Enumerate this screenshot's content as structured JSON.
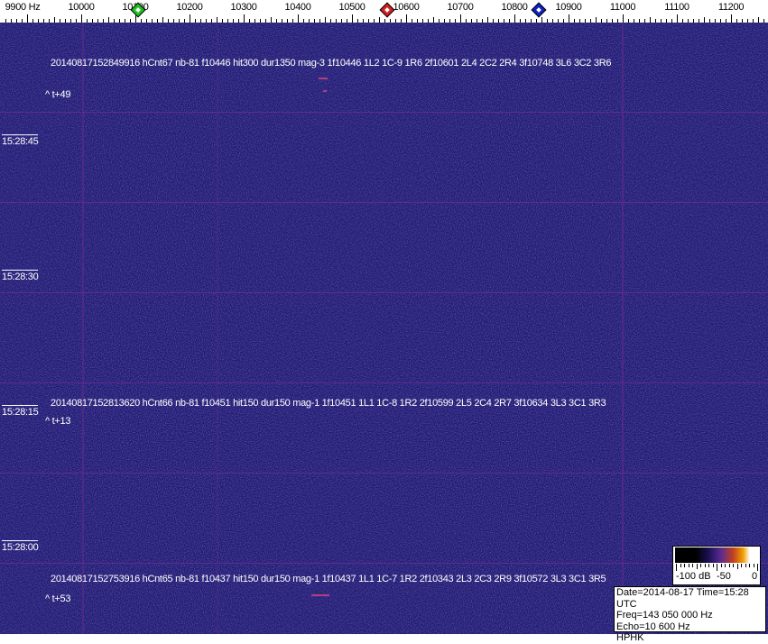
{
  "freq_axis": {
    "labels": [
      "9900 Hz",
      "10000",
      "10100",
      "10200",
      "10300",
      "10400",
      "10500",
      "10600",
      "10700",
      "10800",
      "10900",
      "11000",
      "11100",
      "11200"
    ],
    "label_values": [
      9900,
      10000,
      10100,
      10200,
      10300,
      10400,
      10500,
      10600,
      10700,
      10800,
      10900,
      11000,
      11100,
      11200
    ],
    "markers": [
      {
        "name": "green-marker",
        "freq": 10100,
        "color": "#20c020"
      },
      {
        "name": "red-marker",
        "freq": 10560,
        "color": "#d02020"
      },
      {
        "name": "blue-marker",
        "freq": 10840,
        "color": "#1020c0"
      }
    ]
  },
  "time_axis": [
    "15:28:45",
    "15:28:30",
    "15:28:15",
    "15:28:00"
  ],
  "detections": [
    {
      "line": "20140817152849916 hCnt67 nb-81 f10446 hit300 dur1350 mag-3 1f10446 1L2 1C-9 1R6 2f10601 2L4 2C2 2R4 3f10748 3L6 3C2 3R6",
      "offset": "^ t+49"
    },
    {
      "line": "20140817152813620 hCnt66 nb-81 f10451 hit150 dur150 mag-1 1f10451 1L1 1C-8 1R2 2f10599 2L5 2C4 2R7 3f10634 3L3 3C1 3R3",
      "offset": "^ t+13"
    },
    {
      "line": "20140817152753916 hCnt65 nb-81 f10437 hit150 dur150 mag-1 1f10437 1L1 1C-7 1R2 2f10343 2L3 2C3 2R9 3f10572 3L3 3C1 3R5",
      "offset": "^ t+53"
    }
  ],
  "color_scale": {
    "labels": [
      "-100 dB",
      "-50",
      "0"
    ]
  },
  "info": {
    "date_time": "Date=2014-08-17 Time=15:28 UTC",
    "freq": "Freq=143 050 000 Hz",
    "echo": "Echo=10 600 Hz",
    "station": "HPHK"
  }
}
